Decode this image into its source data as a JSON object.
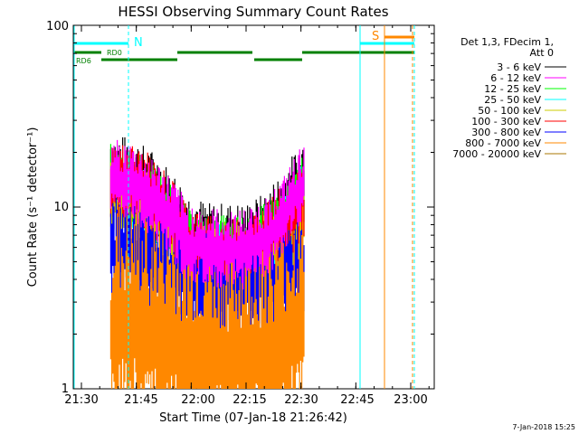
{
  "chart_data": {
    "type": "line",
    "title": "HESSI Observing Summary Count Rates",
    "xlabel": "Start Time (07-Jan-18 21:26:42)",
    "ylabel": "Count Rate (s⁻¹ detector⁻¹)",
    "yscale": "log",
    "ylim": [
      1,
      100
    ],
    "xlim_minutes": [
      21.5,
      21.0
    ],
    "x_ticks": [
      "21:30",
      "21:45",
      "22:00",
      "22:15",
      "22:30",
      "22:45",
      "23:00"
    ],
    "y_ticks": [
      "1",
      "10",
      "100"
    ],
    "legend_header": [
      "Det 1,3, FDecim 1,",
      "Att 0"
    ],
    "legend_position": "right",
    "series": [
      {
        "name": "3 - 6 keV",
        "color": "#000000",
        "values": [
          17,
          16,
          14,
          11,
          8,
          7,
          7,
          7,
          8,
          11,
          16
        ]
      },
      {
        "name": "6 - 12 keV",
        "color": "#ff00ff",
        "values": [
          16,
          15,
          13,
          10,
          7,
          6.5,
          6.5,
          6.5,
          7.5,
          10,
          15
        ]
      },
      {
        "name": "12 - 25 keV",
        "color": "#00ff00",
        "values": [
          15,
          14,
          12,
          9,
          6.5,
          6,
          6,
          6,
          7,
          9,
          13
        ]
      },
      {
        "name": "25 - 50 keV",
        "color": "#00ffff",
        "values": [
          14,
          13,
          11,
          8,
          6,
          5.5,
          5.5,
          5.5,
          6.5,
          8,
          12
        ]
      },
      {
        "name": "50 - 100 keV",
        "color": "#cccc00",
        "values": [
          12,
          12,
          10,
          8,
          6,
          5.5,
          5.5,
          5.5,
          6,
          7,
          9
        ]
      },
      {
        "name": "100 - 300 keV",
        "color": "#ff0000",
        "values": [
          15,
          15,
          13,
          10,
          7,
          6,
          6,
          6,
          7,
          9,
          11
        ]
      },
      {
        "name": "300 - 800 keV",
        "color": "#0000ff",
        "values": [
          6.5,
          6.5,
          6,
          5,
          4.5,
          4,
          4,
          4,
          4.5,
          4.5,
          5
        ]
      },
      {
        "name": "800 - 7000 keV",
        "color": "#ff8800",
        "values": [
          3,
          3,
          2.8,
          2.5,
          2.2,
          2,
          2,
          2,
          2.2,
          2.5,
          3
        ]
      },
      {
        "name": "7000 - 20000 keV",
        "color": "#aa7700",
        "values": []
      }
    ],
    "data_start_time": "21:38",
    "data_end_time": "22:31",
    "annotations": [
      {
        "label": "N",
        "color": "#00ffff"
      },
      {
        "label": "RD0",
        "color": "#008000"
      },
      {
        "label": "RD6",
        "color": "#008000"
      },
      {
        "label": "S",
        "color": "#ff8800"
      }
    ],
    "grid": false
  },
  "footer_stamp": "7-Jan-2018 15:25"
}
